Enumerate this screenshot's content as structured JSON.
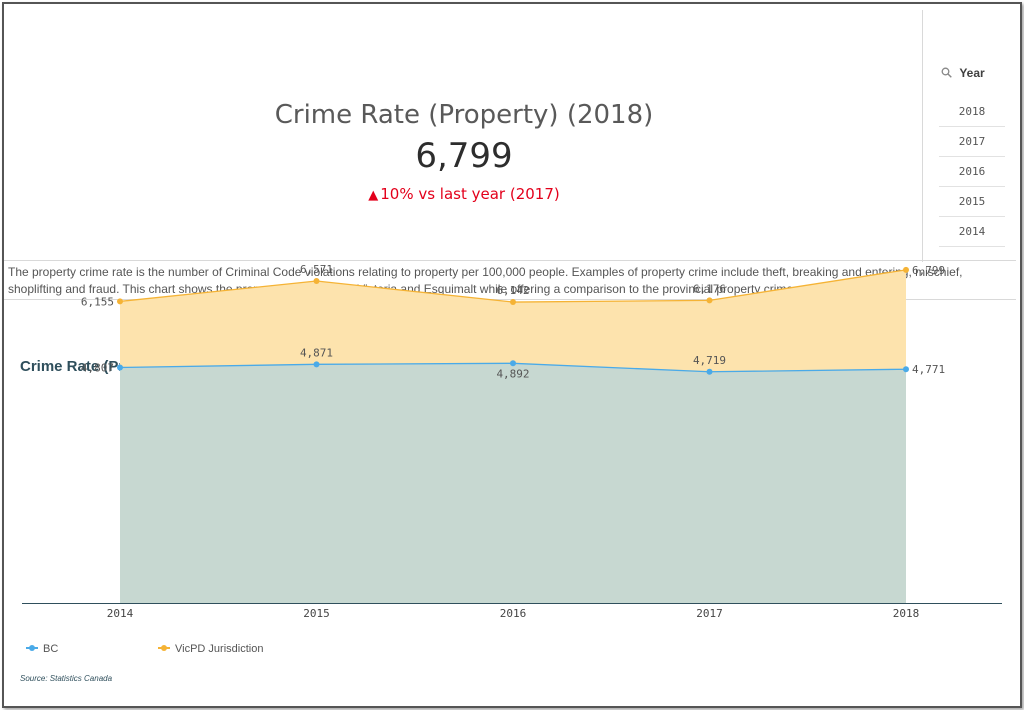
{
  "kpi": {
    "title": "Crime Rate (Property) (2018)",
    "value": "6,799",
    "change_arrow": "▲",
    "change_text": "10% vs last year (2017)",
    "change_color": "#e3001b"
  },
  "filter": {
    "header": "Year",
    "icon": "search-icon",
    "items": [
      "2018",
      "2017",
      "2016",
      "2015",
      "2014"
    ]
  },
  "description": "The property crime rate is the number of Criminal Code violations relating to property per 100,000 people.  Examples of property crime include theft, breaking and entering, mischief, shoplifting and fraud.  This chart shows the property crime rate for Victoria and Esquimalt while offering a comparison to the provincial property crime rate.",
  "chart_title": "Crime Rate (Property) by Year",
  "source": "Source: Statistics Canada",
  "chart_data": {
    "type": "area",
    "title": "Crime Rate (Property) by Year",
    "x": [
      "2014",
      "2015",
      "2016",
      "2017",
      "2018"
    ],
    "series": [
      {
        "name": "BC",
        "values": [
          4807,
          4871,
          4892,
          4719,
          4771
        ],
        "labels": [
          "4,807",
          "4,871",
          "4,892",
          "4,719",
          "4,771"
        ],
        "color": "#4aaae8",
        "fill": "#c7d8d1"
      },
      {
        "name": "VicPD Jurisdiction",
        "values": [
          6155,
          6571,
          6142,
          6176,
          6799
        ],
        "labels": [
          "6,155",
          "6,571",
          "6,142",
          "6,176",
          "6,799"
        ],
        "color": "#f5b335",
        "fill": "#fde3ad"
      }
    ],
    "ylim": [
      0,
      8000
    ],
    "legend": "bottom-left",
    "grid": false
  }
}
